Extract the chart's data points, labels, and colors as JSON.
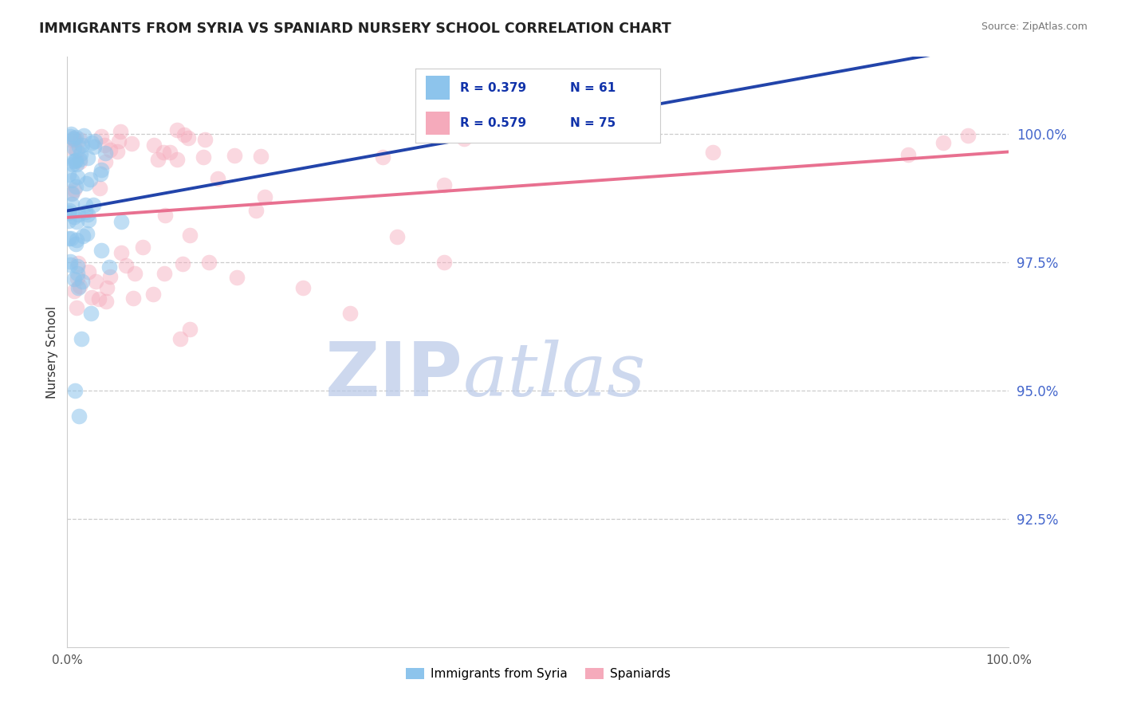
{
  "title": "IMMIGRANTS FROM SYRIA VS SPANIARD NURSERY SCHOOL CORRELATION CHART",
  "source": "Source: ZipAtlas.com",
  "ylabel": "Nursery School",
  "legend_label_blue": "Immigrants from Syria",
  "legend_label_pink": "Spaniards",
  "r_blue": 0.379,
  "n_blue": 61,
  "r_pink": 0.579,
  "n_pink": 75,
  "color_blue": "#8DC4EC",
  "color_pink": "#F5AABB",
  "color_blue_line": "#2244AA",
  "color_pink_line": "#E87090",
  "watermark_zip": "ZIP",
  "watermark_atlas": "atlas",
  "watermark_color_zip": "#B8C8E8",
  "watermark_color_atlas": "#B8C8E8",
  "xlim": [
    0,
    100
  ],
  "ylim": [
    90.0,
    101.5
  ],
  "yticks": [
    92.5,
    95.0,
    97.5,
    100.0
  ],
  "ytick_labels": [
    "92.5%",
    "95.0%",
    "97.5%",
    "100.0%"
  ]
}
